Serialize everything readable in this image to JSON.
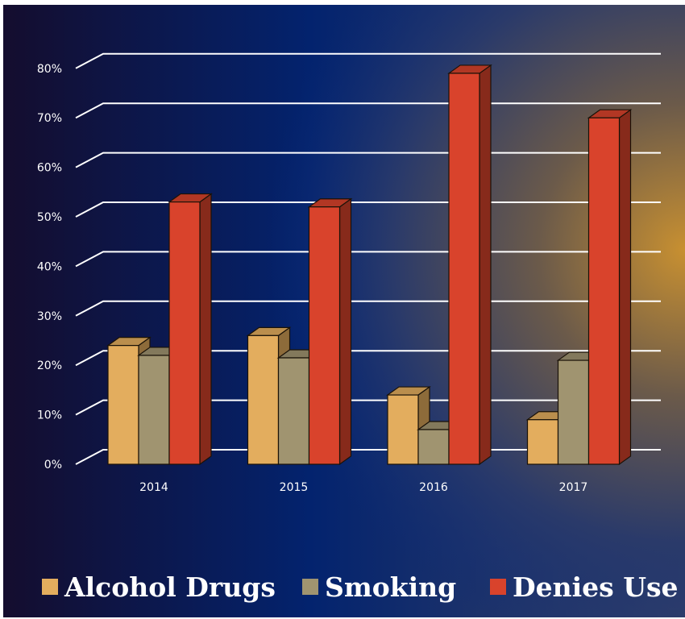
{
  "chart_data": {
    "type": "bar",
    "categories": [
      "2014",
      "2015",
      "2016",
      "2017"
    ],
    "series": [
      {
        "name": "Alcohol Drugs",
        "values": [
          24,
          26,
          14,
          9
        ],
        "color": "#e3ad5e"
      },
      {
        "name": "Smoking",
        "values": [
          22,
          21.5,
          7,
          21
        ],
        "color": "#a09470"
      },
      {
        "name": "Denies Use",
        "values": [
          53,
          52,
          79,
          70
        ],
        "color": "#d9432c"
      }
    ],
    "y_ticks": [
      "0%",
      "10%",
      "20%",
      "30%",
      "40%",
      "50%",
      "60%",
      "70%",
      "80%"
    ],
    "ylim": [
      0,
      80
    ],
    "grid": true,
    "legend": "bottom",
    "title": "",
    "xlabel": "",
    "ylabel": ""
  }
}
